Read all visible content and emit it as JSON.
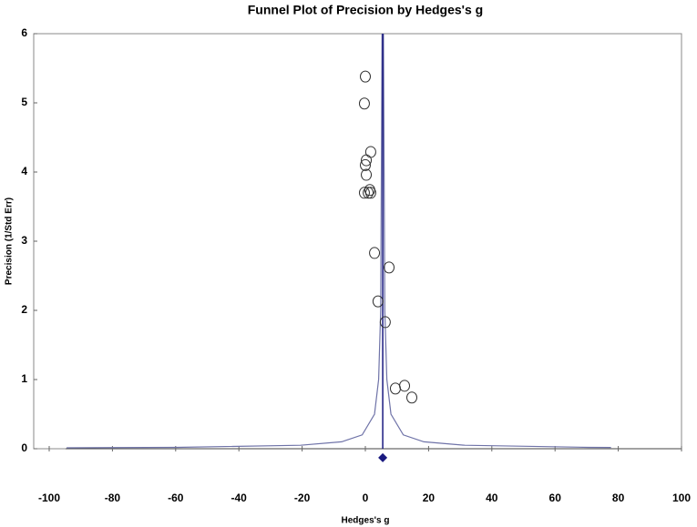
{
  "chart_data": {
    "type": "scatter",
    "title": "Funnel Plot of Precision by Hedges's g",
    "x_label": "Hedges's g",
    "y_label": "Precision (1/Std Err)",
    "x": [
      0,
      -0.3,
      1.7,
      0.3,
      0,
      0.3,
      1.4,
      0.9,
      -0.3,
      1.7,
      2.9,
      7.5,
      4.0,
      6.3,
      9.5,
      12.4,
      14.7
    ],
    "values": [
      5.38,
      4.99,
      4.29,
      4.17,
      4.1,
      3.96,
      3.74,
      3.7,
      3.7,
      3.7,
      2.83,
      2.62,
      2.13,
      1.83,
      0.87,
      0.91,
      0.74
    ],
    "color": "#333333",
    "line_color": "#1a1a80",
    "funnel_color": "#6f73a8",
    "mean_line": 5.5,
    "combined_effect": {
      "x": 5.5,
      "y": -0.13
    },
    "funnel_left": {
      "x": [
        -94.5,
        -59.5,
        -20.5,
        -7.5,
        -1,
        2.9,
        4.2,
        4.85,
        5.28
      ],
      "values": [
        0.013,
        0.02,
        0.05,
        0.1,
        0.2,
        0.5,
        1,
        2,
        6
      ]
    },
    "funnel_right": {
      "x": [
        77.7,
        70.5,
        31.5,
        18.5,
        12,
        8.1,
        6.8,
        6.15,
        5.72
      ],
      "values": [
        0.018,
        0.02,
        0.05,
        0.1,
        0.2,
        0.5,
        1,
        2,
        6
      ]
    },
    "xlim": [
      -100,
      100
    ],
    "xticks": [
      -100,
      -80,
      -60,
      -40,
      -20,
      0,
      20,
      40,
      60,
      80,
      100
    ],
    "ylim": [
      0,
      6
    ],
    "yticks": [
      0,
      1,
      2,
      3,
      4,
      5,
      6
    ]
  }
}
